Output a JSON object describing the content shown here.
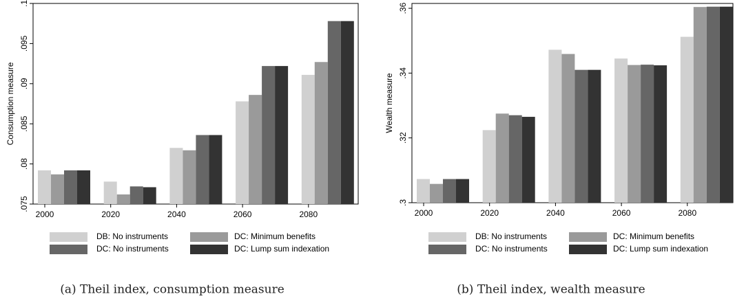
{
  "chart_data": [
    {
      "type": "bar",
      "caption": "(a) Theil index, consumption measure",
      "ylabel": "Consumption measure",
      "categories": [
        "2000",
        "2020",
        "2040",
        "2060",
        "2080"
      ],
      "series": [
        {
          "name": "DB: No instruments",
          "color": "#d0d0d0",
          "values": [
            0.0792,
            0.0778,
            0.082,
            0.0878,
            0.0911
          ]
        },
        {
          "name": "DC: Minimum benefits",
          "color": "#9a9a9a",
          "values": [
            0.0787,
            0.0762,
            0.0817,
            0.0886,
            0.0927
          ]
        },
        {
          "name": "DC: No instruments",
          "color": "#666666",
          "values": [
            0.0792,
            0.0772,
            0.0836,
            0.0922,
            0.0978
          ]
        },
        {
          "name": "DC: Lump sum indexation",
          "color": "#333333",
          "values": [
            0.0792,
            0.0771,
            0.0836,
            0.0922,
            0.0978
          ]
        }
      ],
      "ylim": [
        0.075,
        0.1
      ],
      "yticks": [
        {
          "value": 0.075,
          "label": ".075"
        },
        {
          "value": 0.08,
          "label": ".08"
        },
        {
          "value": 0.085,
          "label": ".085"
        },
        {
          "value": 0.09,
          "label": ".09"
        },
        {
          "value": 0.095,
          "label": ".095"
        },
        {
          "value": 0.1,
          "label": ".1"
        }
      ]
    },
    {
      "type": "bar",
      "caption": "(b) Theil index, wealth measure",
      "ylabel": "Wealth measure",
      "categories": [
        "2000",
        "2020",
        "2040",
        "2060",
        "2080"
      ],
      "series": [
        {
          "name": "DB: No instruments",
          "color": "#d0d0d0",
          "values": [
            0.3073,
            0.3224,
            0.3472,
            0.3445,
            0.3512
          ]
        },
        {
          "name": "DC: Minimum benefits",
          "color": "#9a9a9a",
          "values": [
            0.3058,
            0.3275,
            0.3459,
            0.3425,
            0.3604
          ]
        },
        {
          "name": "DC: No instruments",
          "color": "#666666",
          "values": [
            0.3073,
            0.327,
            0.341,
            0.3426,
            0.3605
          ]
        },
        {
          "name": "DC: Lump sum indexation",
          "color": "#333333",
          "values": [
            0.3073,
            0.3265,
            0.341,
            0.3424,
            0.3605
          ]
        }
      ],
      "ylim": [
        0.3,
        0.3615
      ],
      "yticks": [
        {
          "value": 0.3,
          "label": ".3"
        },
        {
          "value": 0.32,
          "label": ".32"
        },
        {
          "value": 0.34,
          "label": ".34"
        },
        {
          "value": 0.36,
          "label": ".36"
        }
      ]
    }
  ]
}
